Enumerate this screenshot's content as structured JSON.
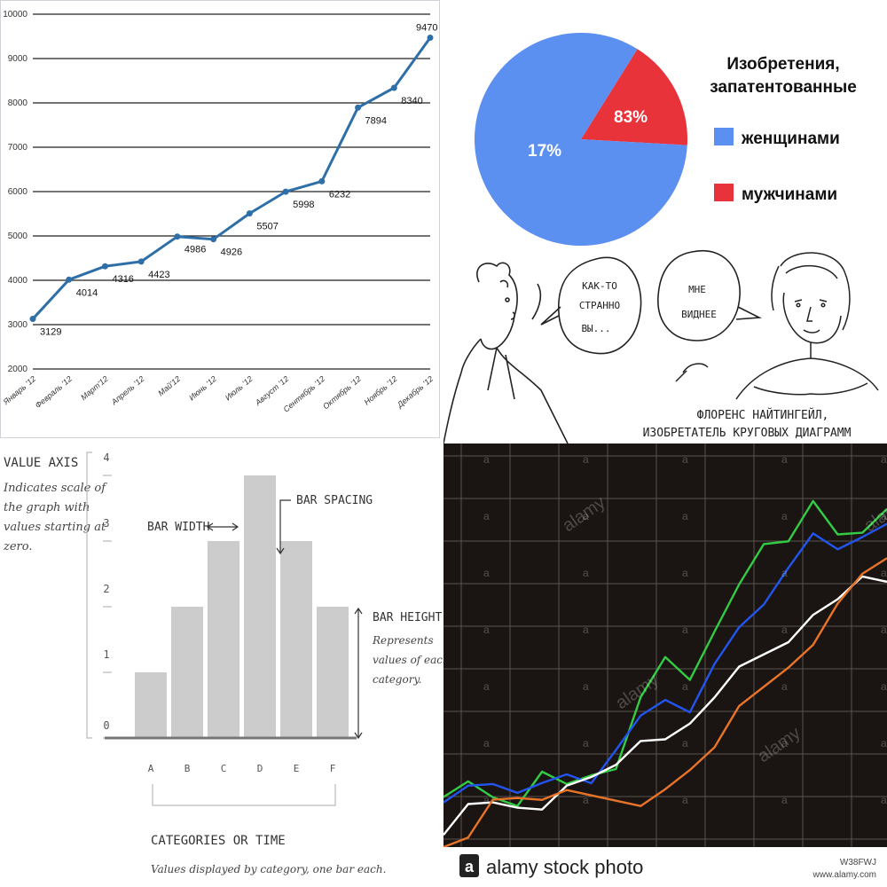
{
  "chart_data": [
    {
      "type": "line",
      "x": [
        "Январь '12",
        "Февраль '12",
        "Март'12",
        "Апрель '12",
        "Май'12",
        "Июнь '12",
        "Июль '12",
        "Август '12",
        "Сентябрь '12",
        "Октябрь '12",
        "Ноябрь '12",
        "Декабрь '12"
      ],
      "values": [
        3129,
        4014,
        4316,
        4423,
        4986,
        4926,
        5507,
        5998,
        6232,
        7894,
        8340,
        9470
      ],
      "yticks": [
        2000,
        3000,
        4000,
        5000,
        6000,
        7000,
        8000,
        9000,
        10000
      ],
      "ylim": [
        2000,
        10000
      ],
      "grid": true,
      "color": "#2f6fa8"
    },
    {
      "type": "pie",
      "title": "Изобретения, запатентованные",
      "slices": [
        {
          "label": "женщинами",
          "value": 17,
          "text": "17%",
          "color": "#5b8ff0"
        },
        {
          "label": "мужчинами",
          "value": 83,
          "text": "83%",
          "color": "#e8333a"
        }
      ],
      "legend": "right"
    },
    {
      "type": "bar",
      "categories": [
        "A",
        "B",
        "C",
        "D",
        "E",
        "F"
      ],
      "values": [
        1,
        2,
        3,
        4,
        3,
        2
      ],
      "yticks": [
        "0",
        "1",
        "2",
        "3",
        "4"
      ],
      "ylim": [
        0,
        4
      ],
      "xlabel": "CATEGORIES OR TIME",
      "color": "#cccccc"
    },
    {
      "type": "line",
      "series": [
        {
          "color": "#33cc44",
          "values": [
            0.12,
            0.18,
            0.15,
            0.14,
            0.2,
            0.18,
            0.22,
            0.2,
            0.42,
            0.55,
            0.5,
            0.6,
            0.75,
            0.88,
            0.85,
            0.98,
            0.9,
            0.92,
            0.95
          ]
        },
        {
          "color": "#2255ee",
          "values": [
            0.15,
            0.16,
            0.18,
            0.17,
            0.16,
            0.2,
            0.19,
            0.3,
            0.36,
            0.42,
            0.4,
            0.5,
            0.62,
            0.7,
            0.82,
            0.88,
            0.85,
            0.9,
            0.9
          ]
        },
        {
          "color": "#ffffff",
          "values": [
            0.05,
            0.1,
            0.12,
            0.12,
            0.13,
            0.16,
            0.2,
            0.25,
            0.28,
            0.3,
            0.36,
            0.45,
            0.5,
            0.55,
            0.6,
            0.64,
            0.7,
            0.78,
            0.78
          ]
        },
        {
          "color": "#e8742a",
          "values": [
            0.0,
            0.05,
            0.12,
            0.14,
            0.15,
            0.14,
            0.14,
            0.14,
            0.14,
            0.15,
            0.22,
            0.3,
            0.38,
            0.45,
            0.52,
            0.6,
            0.68,
            0.78,
            0.84
          ]
        }
      ],
      "grid": true,
      "ylim": [
        0,
        1
      ]
    }
  ],
  "line_chart": {
    "xlabels": [
      "Январь '12",
      "Февраль '12",
      "Март'12",
      "Апрель '12",
      "Май'12",
      "Июнь '12",
      "Июль '12",
      "Август '12",
      "Сентябрь '12",
      "Октябрь '12",
      "Ноябрь '12",
      "Декабрь '12"
    ],
    "yticks": [
      "2000",
      "3000",
      "4000",
      "5000",
      "6000",
      "7000",
      "8000",
      "9000",
      "10000"
    ],
    "data_labels": [
      "3129",
      "4014",
      "4316",
      "4423",
      "4986",
      "4926",
      "5507",
      "5998",
      "6232",
      "7894",
      "8340",
      "9470"
    ]
  },
  "pie_chart": {
    "title_line1": "Изобретения,",
    "title_line2": "запатентованные",
    "legend_women": "женщинами",
    "legend_men": "мужчинами",
    "slice_women": "17%",
    "slice_men": "83%",
    "bubble_man_lines": [
      "КАК-ТО",
      "СТРАННО",
      "ВЫ..."
    ],
    "bubble_woman_lines": [
      "МНЕ",
      "ВИДНЕЕ"
    ],
    "caption_line1": "ФЛОРЕНС НАЙТИНГЕЙЛ,",
    "caption_line2": "ИЗОБРЕТАТЕЛЬ КРУГОВЫХ ДИАГРАММ"
  },
  "bar_chart": {
    "value_axis_title": "VALUE AXIS",
    "value_axis_desc": [
      "Indicates scale of",
      "the graph with",
      "values starting at",
      "zero."
    ],
    "bar_width_label": "BAR WIDTH",
    "bar_spacing_label": "BAR SPACING",
    "bar_height_label": "BAR HEIGHT",
    "bar_height_desc": [
      "Represents",
      "values of each",
      "category."
    ],
    "categories_label": "CATEGORIES OR TIME",
    "categories_desc": "Values displayed by category, one bar each."
  },
  "stock_image": {
    "watermark": "alamy",
    "footer_logo_letter": "a",
    "footer_text": "alamy stock photo",
    "image_id": "W38FWJ",
    "url": "www.alamy.com"
  }
}
